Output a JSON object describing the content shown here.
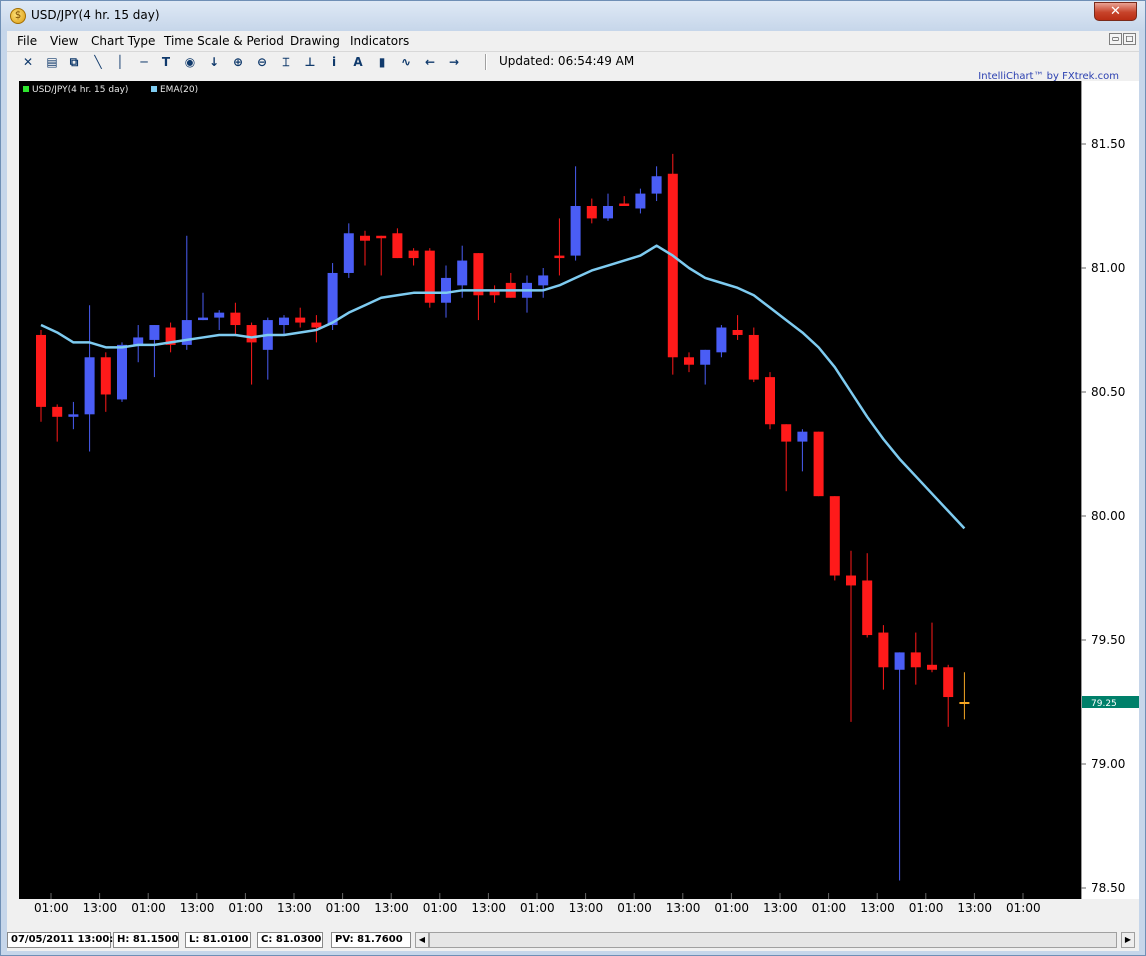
{
  "window": {
    "title": "USD/JPY(4 hr.  15 day)",
    "app_icon": "fxtrek-logo-icon",
    "close_glyph": "✕"
  },
  "menu": {
    "items": [
      "File",
      "View",
      "Chart Type",
      "Time Scale & Period",
      "Drawing",
      "Indicators"
    ]
  },
  "toolbar": {
    "icons": [
      {
        "name": "cursor-cross-icon",
        "glyph": "✕"
      },
      {
        "name": "print-icon",
        "glyph": "▤"
      },
      {
        "name": "copy-icon",
        "glyph": "⧉"
      },
      {
        "name": "trendline-icon",
        "glyph": "╲"
      },
      {
        "name": "vertical-line-icon",
        "glyph": "│"
      },
      {
        "name": "horizontal-line-icon",
        "glyph": "─"
      },
      {
        "name": "text-tool-icon",
        "glyph": "T"
      },
      {
        "name": "target-icon",
        "glyph": "◉"
      },
      {
        "name": "arrow-down-icon",
        "glyph": "↓"
      },
      {
        "name": "zoom-in-icon",
        "glyph": "⊕"
      },
      {
        "name": "zoom-out-icon",
        "glyph": "⊖"
      },
      {
        "name": "fit-icon",
        "glyph": "⌶"
      },
      {
        "name": "baseline-icon",
        "glyph": "⊥"
      },
      {
        "name": "info-icon",
        "glyph": "i"
      },
      {
        "name": "font-icon",
        "glyph": "A"
      },
      {
        "name": "bar-chart-icon",
        "glyph": "▮"
      },
      {
        "name": "line-chart-icon",
        "glyph": "∿"
      },
      {
        "name": "scroll-left-icon",
        "glyph": "←"
      },
      {
        "name": "scroll-right-icon",
        "glyph": "→"
      }
    ],
    "updated": "Updated: 06:54:49 AM"
  },
  "brand": "IntelliChart™ by FXtrek.com",
  "legend": [
    {
      "label": "USD/JPY(4 hr.  15 day)",
      "color": "#2ee62e"
    },
    {
      "label": "EMA(20)",
      "color": "#7ecbf0"
    }
  ],
  "status": {
    "date": "07/05/2011 13:00:00",
    "high": "H: 81.1500",
    "low": "L: 81.0100",
    "close": "C: 81.0300",
    "pv": "PV: 81.7600"
  },
  "colors": {
    "background": "#000000",
    "up": "#4a5df5",
    "down": "#ff1a1a",
    "ema": "#7ecbf0",
    "current": "#f5a623",
    "price_tag": "#00806a"
  },
  "chart_data": {
    "type": "candlestick",
    "ylim": [
      78.5,
      81.5
    ],
    "y_ticks": [
      "81.50",
      "81.00",
      "80.50",
      "80.00",
      "79.50",
      "79.00",
      "78.50"
    ],
    "x_ticks": [
      "01:00",
      "13:00",
      "01:00",
      "13:00",
      "01:00",
      "13:00",
      "01:00",
      "13:00",
      "01:00",
      "13:00",
      "01:00",
      "13:00",
      "01:00",
      "13:00",
      "01:00",
      "13:00",
      "01:00",
      "13:00",
      "01:00",
      "13:00",
      "01:00"
    ],
    "current_price": "79.25",
    "candles": [
      [
        80.73,
        80.75,
        80.38,
        80.44
      ],
      [
        80.44,
        80.45,
        80.3,
        80.4
      ],
      [
        80.4,
        80.46,
        80.35,
        80.41
      ],
      [
        80.41,
        80.85,
        80.26,
        80.64
      ],
      [
        80.64,
        80.66,
        80.42,
        80.49
      ],
      [
        80.47,
        80.7,
        80.46,
        80.69
      ],
      [
        80.69,
        80.77,
        80.62,
        80.72
      ],
      [
        80.71,
        80.77,
        80.56,
        80.77
      ],
      [
        80.76,
        80.78,
        80.66,
        80.69
      ],
      [
        80.69,
        81.13,
        80.67,
        80.79
      ],
      [
        80.79,
        80.9,
        80.79,
        80.8
      ],
      [
        80.8,
        80.83,
        80.75,
        80.82
      ],
      [
        80.82,
        80.86,
        80.73,
        80.77
      ],
      [
        80.77,
        80.78,
        80.53,
        80.7
      ],
      [
        80.67,
        80.8,
        80.55,
        80.79
      ],
      [
        80.77,
        80.81,
        80.73,
        80.8
      ],
      [
        80.8,
        80.84,
        80.76,
        80.78
      ],
      [
        80.78,
        80.81,
        80.7,
        80.76
      ],
      [
        80.77,
        81.02,
        80.75,
        80.98
      ],
      [
        80.98,
        81.18,
        80.96,
        81.14
      ],
      [
        81.13,
        81.15,
        81.01,
        81.11
      ],
      [
        81.13,
        81.13,
        80.97,
        81.12
      ],
      [
        81.14,
        81.16,
        81.04,
        81.04
      ],
      [
        81.07,
        81.08,
        81.01,
        81.04
      ],
      [
        81.07,
        81.08,
        80.84,
        80.86
      ],
      [
        80.86,
        81.01,
        80.8,
        80.96
      ],
      [
        80.93,
        81.09,
        80.88,
        81.03
      ],
      [
        81.06,
        81.06,
        80.79,
        80.89
      ],
      [
        80.91,
        80.93,
        80.86,
        80.89
      ],
      [
        80.94,
        80.98,
        80.88,
        80.88
      ],
      [
        80.88,
        80.97,
        80.82,
        80.94
      ],
      [
        80.93,
        81.0,
        80.88,
        80.97
      ],
      [
        81.05,
        81.2,
        80.97,
        81.04
      ],
      [
        81.05,
        81.41,
        81.03,
        81.25
      ],
      [
        81.25,
        81.28,
        81.18,
        81.2
      ],
      [
        81.2,
        81.3,
        81.19,
        81.25
      ],
      [
        81.26,
        81.29,
        81.25,
        81.25
      ],
      [
        81.24,
        81.32,
        81.22,
        81.3
      ],
      [
        81.3,
        81.41,
        81.27,
        81.37
      ],
      [
        81.38,
        81.46,
        80.57,
        80.64
      ],
      [
        80.64,
        80.66,
        80.58,
        80.61
      ],
      [
        80.61,
        80.67,
        80.53,
        80.67
      ],
      [
        80.66,
        80.77,
        80.64,
        80.76
      ],
      [
        80.75,
        80.81,
        80.71,
        80.73
      ],
      [
        80.73,
        80.76,
        80.54,
        80.55
      ],
      [
        80.56,
        80.58,
        80.35,
        80.37
      ],
      [
        80.37,
        80.37,
        80.1,
        80.3
      ],
      [
        80.3,
        80.35,
        80.18,
        80.34
      ],
      [
        80.34,
        80.34,
        80.08,
        80.08
      ],
      [
        80.08,
        80.08,
        79.74,
        79.76
      ],
      [
        79.76,
        79.86,
        79.17,
        79.72
      ],
      [
        79.74,
        79.85,
        79.51,
        79.52
      ],
      [
        79.53,
        79.56,
        79.3,
        79.39
      ],
      [
        79.38,
        79.45,
        78.53,
        79.45
      ],
      [
        79.45,
        79.53,
        79.32,
        79.39
      ],
      [
        79.4,
        79.57,
        79.37,
        79.38
      ],
      [
        79.39,
        79.4,
        79.15,
        79.27
      ],
      [
        79.25,
        79.37,
        79.18,
        79.25
      ]
    ],
    "ema20": [
      [
        0,
        80.77
      ],
      [
        1,
        80.74
      ],
      [
        2,
        80.7
      ],
      [
        3,
        80.7
      ],
      [
        4,
        80.68
      ],
      [
        5,
        80.68
      ],
      [
        6,
        80.69
      ],
      [
        7,
        80.69
      ],
      [
        8,
        80.7
      ],
      [
        9,
        80.71
      ],
      [
        10,
        80.72
      ],
      [
        11,
        80.73
      ],
      [
        12,
        80.73
      ],
      [
        13,
        80.72
      ],
      [
        14,
        80.73
      ],
      [
        15,
        80.73
      ],
      [
        16,
        80.74
      ],
      [
        17,
        80.75
      ],
      [
        18,
        80.78
      ],
      [
        19,
        80.82
      ],
      [
        20,
        80.85
      ],
      [
        21,
        80.88
      ],
      [
        22,
        80.89
      ],
      [
        23,
        80.9
      ],
      [
        24,
        80.9
      ],
      [
        25,
        80.9
      ],
      [
        26,
        80.91
      ],
      [
        27,
        80.91
      ],
      [
        28,
        80.91
      ],
      [
        29,
        80.91
      ],
      [
        30,
        80.91
      ],
      [
        31,
        80.91
      ],
      [
        32,
        80.93
      ],
      [
        33,
        80.96
      ],
      [
        34,
        80.99
      ],
      [
        35,
        81.01
      ],
      [
        36,
        81.03
      ],
      [
        37,
        81.05
      ],
      [
        38,
        81.09
      ],
      [
        39,
        81.05
      ],
      [
        40,
        81.0
      ],
      [
        41,
        80.96
      ],
      [
        42,
        80.94
      ],
      [
        43,
        80.92
      ],
      [
        44,
        80.89
      ],
      [
        45,
        80.84
      ],
      [
        46,
        80.79
      ],
      [
        47,
        80.74
      ],
      [
        48,
        80.68
      ],
      [
        49,
        80.6
      ],
      [
        50,
        80.5
      ],
      [
        51,
        80.4
      ],
      [
        52,
        80.31
      ],
      [
        53,
        80.23
      ],
      [
        54,
        80.16
      ],
      [
        55,
        80.09
      ],
      [
        56,
        80.02
      ],
      [
        57,
        79.95
      ]
    ]
  }
}
